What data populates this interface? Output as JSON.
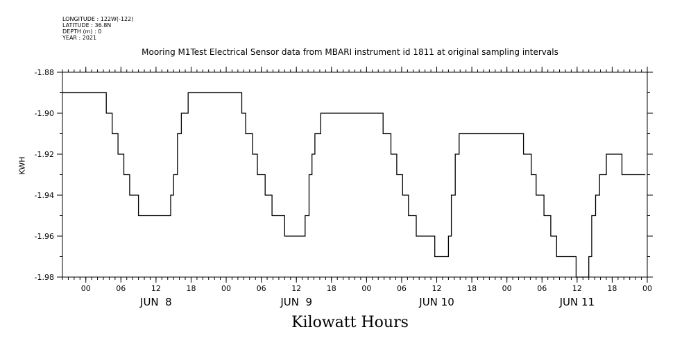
{
  "header": {
    "longitude": "LONGITUDE : 122W(-122)",
    "latitude": "LATITUDE : 36.8N",
    "depth": "DEPTH (m) : 0",
    "year": "YEAR : 2021",
    "title": "Mooring M1Test Electrical Sensor data from MBARI instrument id 1811 at original sampling intervals"
  },
  "chart_data": {
    "type": "line",
    "title": "Mooring M1Test Electrical Sensor data from MBARI instrument id 1811 at original sampling intervals",
    "xlabel": "Kilowatt Hours",
    "ylabel": "KWH",
    "ylim": [
      -1.98,
      -1.88
    ],
    "yticks": [
      -1.88,
      -1.9,
      -1.92,
      -1.94,
      -1.96,
      -1.98
    ],
    "ytick_labels": [
      "-1.88",
      "-1.90",
      "-1.92",
      "-1.94",
      "-1.96",
      "-1.98"
    ],
    "xlim": [
      "2021-06-07T20:00",
      "2021-06-12T00:00"
    ],
    "xtick_labels": [
      "00",
      "06",
      "12",
      "18",
      "00",
      "06",
      "12",
      "18",
      "00",
      "06",
      "12",
      "18",
      "00",
      "06",
      "12",
      "18",
      "00"
    ],
    "xtick_hours": [
      "2021-06-08T00:00",
      "2021-06-08T06:00",
      "2021-06-08T12:00",
      "2021-06-08T18:00",
      "2021-06-09T00:00",
      "2021-06-09T06:00",
      "2021-06-09T12:00",
      "2021-06-09T18:00",
      "2021-06-10T00:00",
      "2021-06-10T06:00",
      "2021-06-10T12:00",
      "2021-06-10T18:00",
      "2021-06-11T00:00",
      "2021-06-11T06:00",
      "2021-06-11T12:00",
      "2021-06-11T18:00",
      "2021-06-12T00:00"
    ],
    "day_labels": [
      {
        "label": "JUN  8",
        "at": "2021-06-08T12:00"
      },
      {
        "label": "JUN  9",
        "at": "2021-06-09T12:00"
      },
      {
        "label": "JUN 10",
        "at": "2021-06-10T12:00"
      },
      {
        "label": "JUN 11",
        "at": "2021-06-11T12:00"
      }
    ],
    "series": [
      {
        "color": "#000000",
        "x": [
          "2021-06-07T20:00",
          "2021-06-08T03:30",
          "2021-06-08T03:30",
          "2021-06-08T04:30",
          "2021-06-08T04:30",
          "2021-06-08T05:30",
          "2021-06-08T05:30",
          "2021-06-08T06:30",
          "2021-06-08T06:30",
          "2021-06-08T07:30",
          "2021-06-08T07:30",
          "2021-06-08T09:00",
          "2021-06-08T09:00",
          "2021-06-08T10:00",
          "2021-06-08T10:00",
          "2021-06-08T11:30",
          "2021-06-08T11:30",
          "2021-06-08T14:30",
          "2021-06-08T14:30",
          "2021-06-08T15:00",
          "2021-06-08T15:00",
          "2021-06-08T15:40",
          "2021-06-08T15:40",
          "2021-06-08T16:20",
          "2021-06-08T16:20",
          "2021-06-08T17:30",
          "2021-06-08T17:30",
          "2021-06-09T02:40",
          "2021-06-09T02:40",
          "2021-06-09T03:20",
          "2021-06-09T03:20",
          "2021-06-09T04:30",
          "2021-06-09T04:30",
          "2021-06-09T05:20",
          "2021-06-09T05:20",
          "2021-06-09T06:40",
          "2021-06-09T06:40",
          "2021-06-09T07:50",
          "2021-06-09T07:50",
          "2021-06-09T08:50",
          "2021-06-09T08:50",
          "2021-06-09T10:00",
          "2021-06-09T10:00",
          "2021-06-09T11:50",
          "2021-06-09T11:50",
          "2021-06-09T13:30",
          "2021-06-09T13:30",
          "2021-06-09T14:10",
          "2021-06-09T14:10",
          "2021-06-09T14:40",
          "2021-06-09T14:40",
          "2021-06-09T15:10",
          "2021-06-09T15:10",
          "2021-06-09T16:10",
          "2021-06-09T16:10",
          "2021-06-09T16:50",
          "2021-06-09T16:50",
          "2021-06-10T02:50",
          "2021-06-10T02:50",
          "2021-06-10T04:10",
          "2021-06-10T04:10",
          "2021-06-10T05:10",
          "2021-06-10T05:10",
          "2021-06-10T06:10",
          "2021-06-10T06:10",
          "2021-06-10T07:10",
          "2021-06-10T07:10",
          "2021-06-10T08:30",
          "2021-06-10T08:30",
          "2021-06-10T09:40",
          "2021-06-10T09:40",
          "2021-06-10T11:40",
          "2021-06-10T11:40",
          "2021-06-10T14:00",
          "2021-06-10T14:00",
          "2021-06-10T14:30",
          "2021-06-10T14:30",
          "2021-06-10T15:10",
          "2021-06-10T15:10",
          "2021-06-10T15:50",
          "2021-06-10T15:50",
          "2021-06-10T17:00",
          "2021-06-10T17:00",
          "2021-06-11T02:50",
          "2021-06-11T02:50",
          "2021-06-11T04:10",
          "2021-06-11T04:10",
          "2021-06-11T05:00",
          "2021-06-11T05:00",
          "2021-06-11T06:20",
          "2021-06-11T06:20",
          "2021-06-11T07:30",
          "2021-06-11T07:30",
          "2021-06-11T08:30",
          "2021-06-11T08:30",
          "2021-06-11T09:50",
          "2021-06-11T09:50",
          "2021-06-11T11:50",
          "2021-06-11T11:50",
          "2021-06-11T14:00",
          "2021-06-11T14:00",
          "2021-06-11T14:30",
          "2021-06-11T14:30",
          "2021-06-11T15:10",
          "2021-06-11T15:10",
          "2021-06-11T15:50",
          "2021-06-11T15:50",
          "2021-06-11T17:00",
          "2021-06-11T17:00",
          "2021-06-11T19:40",
          "2021-06-11T19:40",
          "2021-06-11T23:40"
        ],
        "y": [
          -1.89,
          -1.89,
          -1.9,
          -1.9,
          -1.91,
          -1.91,
          -1.92,
          -1.92,
          -1.93,
          -1.93,
          -1.94,
          -1.94,
          -1.95,
          -1.95,
          -1.95,
          -1.95,
          -1.95,
          -1.95,
          -1.94,
          -1.94,
          -1.93,
          -1.93,
          -1.91,
          -1.91,
          -1.9,
          -1.9,
          -1.89,
          -1.89,
          -1.9,
          -1.9,
          -1.91,
          -1.91,
          -1.92,
          -1.92,
          -1.93,
          -1.93,
          -1.94,
          -1.94,
          -1.95,
          -1.95,
          -1.95,
          -1.95,
          -1.96,
          -1.96,
          -1.96,
          -1.96,
          -1.95,
          -1.95,
          -1.93,
          -1.93,
          -1.92,
          -1.92,
          -1.91,
          -1.91,
          -1.9,
          -1.9,
          -1.9,
          -1.9,
          -1.91,
          -1.91,
          -1.92,
          -1.92,
          -1.93,
          -1.93,
          -1.94,
          -1.94,
          -1.95,
          -1.95,
          -1.96,
          -1.96,
          -1.96,
          -1.96,
          -1.97,
          -1.97,
          -1.96,
          -1.96,
          -1.94,
          -1.94,
          -1.92,
          -1.92,
          -1.91,
          -1.91,
          -1.91,
          -1.91,
          -1.92,
          -1.92,
          -1.93,
          -1.93,
          -1.94,
          -1.94,
          -1.95,
          -1.95,
          -1.96,
          -1.96,
          -1.97,
          -1.97,
          -1.97,
          -1.97,
          -1.98,
          -1.98,
          -1.97,
          -1.97,
          -1.95,
          -1.95,
          -1.94,
          -1.94,
          -1.93,
          -1.93,
          -1.92,
          -1.92,
          -1.93,
          -1.93
        ]
      }
    ]
  }
}
